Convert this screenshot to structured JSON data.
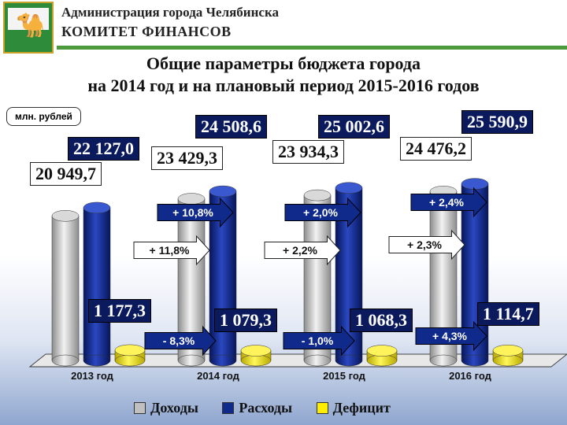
{
  "header": {
    "line1": "Администрация города Челябинска",
    "line2": "КОМИТЕТ ФИНАНСОВ",
    "logo_icon": "camel-emblem-icon"
  },
  "title": {
    "line1": "Общие параметры бюджета города",
    "line2": "на 2014 год и на плановый период 2015-2016 годов"
  },
  "units": "млн. рублей",
  "colors": {
    "income": "#b8b8b8",
    "expenses": "#0f2a8a",
    "deficit": "#ffee00",
    "header_rule": "#4c9a3d"
  },
  "chart_data": {
    "type": "bar",
    "categories": [
      "2013 год",
      "2014 год",
      "2015 год",
      "2016 год"
    ],
    "series": [
      {
        "name": "Доходы",
        "values": [
          20949.7,
          23429.3,
          23934.3,
          24476.2
        ],
        "labels": [
          "20 949,7",
          "23 429,3",
          "23 934,3",
          "24 476,2"
        ]
      },
      {
        "name": "Расходы",
        "values": [
          22127.0,
          24508.6,
          25002.6,
          25590.9
        ],
        "labels": [
          "22 127,0",
          "24 508,6",
          "25 002,6",
          "25 590,9"
        ]
      },
      {
        "name": "Дефицит",
        "values": [
          1177.3,
          1079.3,
          1068.3,
          1114.7
        ],
        "labels": [
          "1 177,3",
          "1 079,3",
          "1 068,3",
          "1 114,7"
        ]
      }
    ],
    "growth_expenses": [
      "+ 10,8%",
      "+ 2,0%",
      "+ 2,4%"
    ],
    "growth_income": [
      "+ 11,8%",
      "+ 2,2%",
      "+ 2,3%"
    ],
    "growth_deficit": [
      "- 8,3%",
      "- 1,0%",
      "+ 4,3%"
    ]
  },
  "legend": [
    "Доходы",
    "Расходы",
    "Дефицит"
  ]
}
